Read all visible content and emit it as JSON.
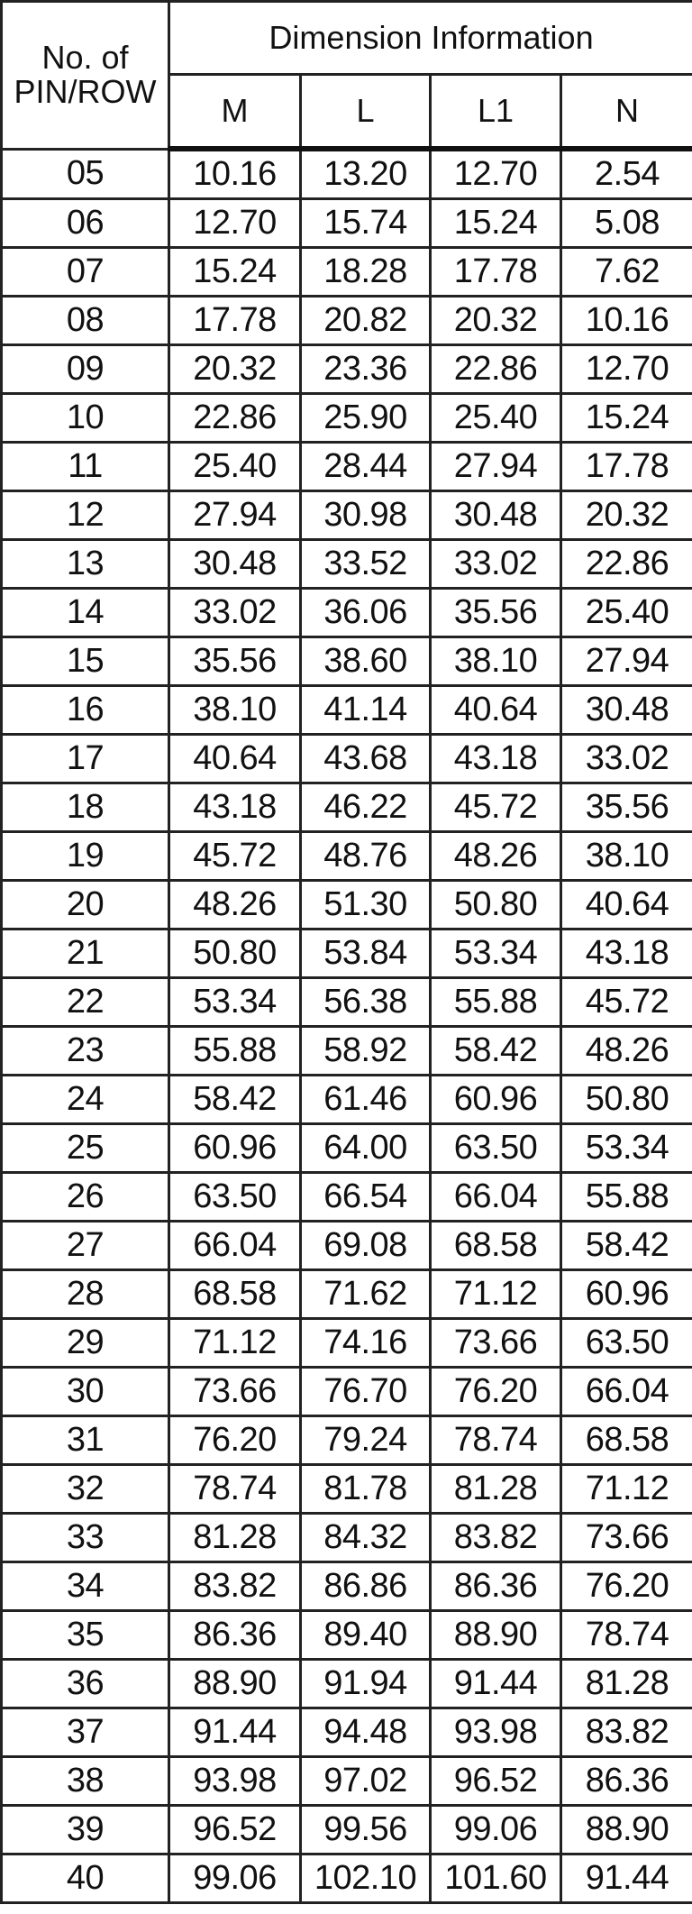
{
  "header": {
    "pin_label_line1": "No. of",
    "pin_label_line2": "PIN/ROW",
    "group": "Dimension Information",
    "columns": [
      "M",
      "L",
      "L1",
      "N"
    ]
  },
  "rows": [
    [
      "05",
      "10.16",
      "13.20",
      "12.70",
      "2.54"
    ],
    [
      "06",
      "12.70",
      "15.74",
      "15.24",
      "5.08"
    ],
    [
      "07",
      "15.24",
      "18.28",
      "17.78",
      "7.62"
    ],
    [
      "08",
      "17.78",
      "20.82",
      "20.32",
      "10.16"
    ],
    [
      "09",
      "20.32",
      "23.36",
      "22.86",
      "12.70"
    ],
    [
      "10",
      "22.86",
      "25.90",
      "25.40",
      "15.24"
    ],
    [
      "11",
      "25.40",
      "28.44",
      "27.94",
      "17.78"
    ],
    [
      "12",
      "27.94",
      "30.98",
      "30.48",
      "20.32"
    ],
    [
      "13",
      "30.48",
      "33.52",
      "33.02",
      "22.86"
    ],
    [
      "14",
      "33.02",
      "36.06",
      "35.56",
      "25.40"
    ],
    [
      "15",
      "35.56",
      "38.60",
      "38.10",
      "27.94"
    ],
    [
      "16",
      "38.10",
      "41.14",
      "40.64",
      "30.48"
    ],
    [
      "17",
      "40.64",
      "43.68",
      "43.18",
      "33.02"
    ],
    [
      "18",
      "43.18",
      "46.22",
      "45.72",
      "35.56"
    ],
    [
      "19",
      "45.72",
      "48.76",
      "48.26",
      "38.10"
    ],
    [
      "20",
      "48.26",
      "51.30",
      "50.80",
      "40.64"
    ],
    [
      "21",
      "50.80",
      "53.84",
      "53.34",
      "43.18"
    ],
    [
      "22",
      "53.34",
      "56.38",
      "55.88",
      "45.72"
    ],
    [
      "23",
      "55.88",
      "58.92",
      "58.42",
      "48.26"
    ],
    [
      "24",
      "58.42",
      "61.46",
      "60.96",
      "50.80"
    ],
    [
      "25",
      "60.96",
      "64.00",
      "63.50",
      "53.34"
    ],
    [
      "26",
      "63.50",
      "66.54",
      "66.04",
      "55.88"
    ],
    [
      "27",
      "66.04",
      "69.08",
      "68.58",
      "58.42"
    ],
    [
      "28",
      "68.58",
      "71.62",
      "71.12",
      "60.96"
    ],
    [
      "29",
      "71.12",
      "74.16",
      "73.66",
      "63.50"
    ],
    [
      "30",
      "73.66",
      "76.70",
      "76.20",
      "66.04"
    ],
    [
      "31",
      "76.20",
      "79.24",
      "78.74",
      "68.58"
    ],
    [
      "32",
      "78.74",
      "81.78",
      "81.28",
      "71.12"
    ],
    [
      "33",
      "81.28",
      "84.32",
      "83.82",
      "73.66"
    ],
    [
      "34",
      "83.82",
      "86.86",
      "86.36",
      "76.20"
    ],
    [
      "35",
      "86.36",
      "89.40",
      "88.90",
      "78.74"
    ],
    [
      "36",
      "88.90",
      "91.94",
      "91.44",
      "81.28"
    ],
    [
      "37",
      "91.44",
      "94.48",
      "93.98",
      "83.82"
    ],
    [
      "38",
      "93.98",
      "97.02",
      "96.52",
      "86.36"
    ],
    [
      "39",
      "96.52",
      "99.56",
      "99.06",
      "88.90"
    ],
    [
      "40",
      "99.06",
      "102.10",
      "101.60",
      "91.44"
    ]
  ]
}
